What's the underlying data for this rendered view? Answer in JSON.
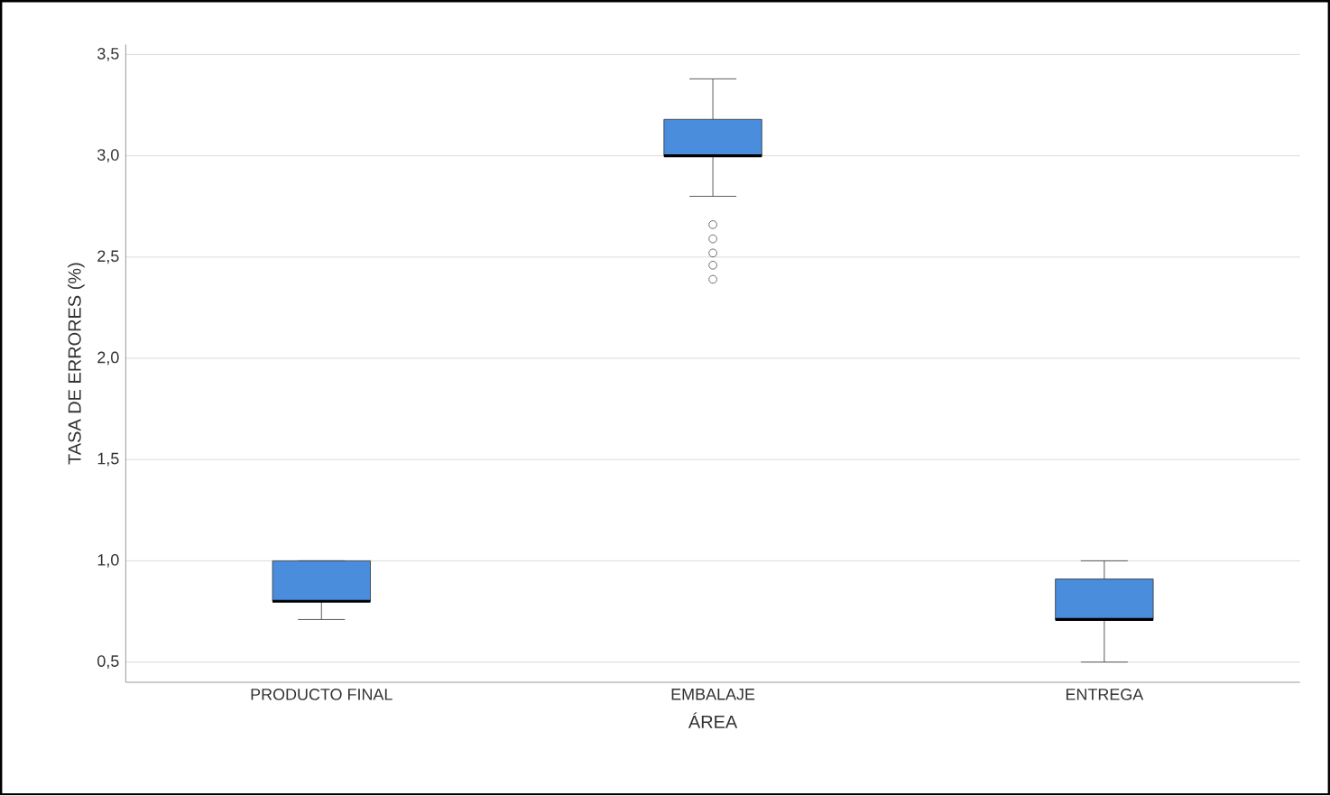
{
  "chart_data": {
    "type": "box",
    "xlabel": "ÁREA",
    "ylabel": "TASA DE ERRORES (%)",
    "categories": [
      "PRODUCTO FINAL",
      "EMBALAJE",
      "ENTREGA"
    ],
    "color": "#4a8ddc",
    "boxes": [
      {
        "low": 0.71,
        "q1": 0.8,
        "median": 0.8,
        "q3": 1.0,
        "high": 1.0
      },
      {
        "low": 2.8,
        "q1": 3.0,
        "median": 3.0,
        "q3": 3.18,
        "high": 3.38,
        "outliers": [
          2.66,
          2.59,
          2.52,
          2.46,
          2.39
        ]
      },
      {
        "low": 0.5,
        "q1": 0.71,
        "median": 0.71,
        "q3": 0.91,
        "high": 1.0
      }
    ],
    "ylim": [
      0.4,
      3.55
    ],
    "yticks": [
      {
        "value": 0.5,
        "label": "0,5"
      },
      {
        "value": 1.0,
        "label": "1,0"
      },
      {
        "value": 1.5,
        "label": "1,5"
      },
      {
        "value": 2.0,
        "label": "2,0"
      },
      {
        "value": 2.5,
        "label": "2,5"
      },
      {
        "value": 3.0,
        "label": "3,0"
      },
      {
        "value": 3.5,
        "label": "3,5"
      }
    ],
    "grid": "y"
  }
}
